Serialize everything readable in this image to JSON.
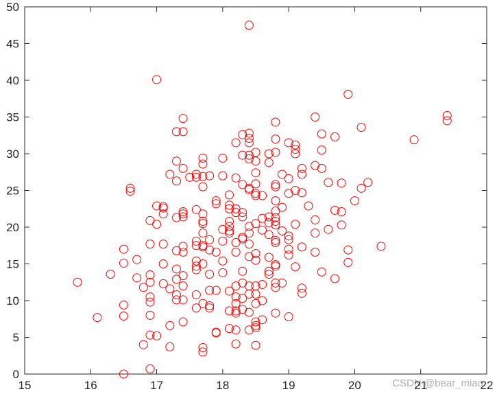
{
  "chart_data": {
    "type": "scatter",
    "color": "#ff0000",
    "marker": "circle-open",
    "box": true,
    "watermark": "CSDN @bear_miao",
    "xlim": [
      15,
      22
    ],
    "xticks": [
      15,
      16,
      17,
      18,
      19,
      20,
      21,
      22
    ],
    "ylim": [
      0,
      50
    ],
    "yticks": [
      0,
      5,
      10,
      15,
      20,
      25,
      30,
      35,
      40,
      45,
      50
    ],
    "x": [
      15.8,
      16.1,
      16.3,
      16.5,
      16.5,
      16.5,
      16.5,
      16.5,
      16.6,
      16.6,
      16.7,
      16.7,
      16.8,
      16.8,
      16.9,
      16.9,
      16.9,
      16.9,
      16.9,
      16.9,
      16.9,
      16.9,
      16.9,
      17,
      17,
      17,
      17,
      17.1,
      17.1,
      17.1,
      17.1,
      17.1,
      17.1,
      17.2,
      17.2,
      17.2,
      17.2,
      17.3,
      17.3,
      17.3,
      17.3,
      17.3,
      17.3,
      17.3,
      17.3,
      17.3,
      17.4,
      17.4,
      17.4,
      17.4,
      17.4,
      17.4,
      17.4,
      17.4,
      17.4,
      17.4,
      17.4,
      17.4,
      17.5,
      17.6,
      17.6,
      17.6,
      17.6,
      17.6,
      17.6,
      17.6,
      17.6,
      17.6,
      17.6,
      17.7,
      17.7,
      17.7,
      17.7,
      17.7,
      17.7,
      17.7,
      17.7,
      17.7,
      17.7,
      17.7,
      17.7,
      17.7,
      17.7,
      17.8,
      17.8,
      17.8,
      17.8,
      17.8,
      17.8,
      17.8,
      17.9,
      17.9,
      17.9,
      17.9,
      17.9,
      17.9,
      18,
      18,
      18,
      18,
      18,
      18,
      18.1,
      18.1,
      18.1,
      18.1,
      18.1,
      18.1,
      18.1,
      18.1,
      18.1,
      18.1,
      18.2,
      18.2,
      18.2,
      18.2,
      18.2,
      18.2,
      18.2,
      18.2,
      18.2,
      18.2,
      18.2,
      18.2,
      18.2,
      18.3,
      18.3,
      18.3,
      18.3,
      18.3,
      18.3,
      18.3,
      18.3,
      18.3,
      18.3,
      18.3,
      18.4,
      18.4,
      18.4,
      18.4,
      18.4,
      18.4,
      18.4,
      18.4,
      18.4,
      18.4,
      18.4,
      18.4,
      18.4,
      18.4,
      18.4,
      18.4,
      18.5,
      18.5,
      18.5,
      18.5,
      18.5,
      18.5,
      18.5,
      18.5,
      18.5,
      18.5,
      18.5,
      18.5,
      18.5,
      18.5,
      18.5,
      18.5,
      18.6,
      18.6,
      18.6,
      18.6,
      18.6,
      18.6,
      18.7,
      18.7,
      18.7,
      18.7,
      18.7,
      18.7,
      18.7,
      18.7,
      18.8,
      18.8,
      18.8,
      18.8,
      18.8,
      18.8,
      18.8,
      18.8,
      18.8,
      18.8,
      18.8,
      18.8,
      18.8,
      18.8,
      18.8,
      18.8,
      18.8,
      18.9,
      18.9,
      18.9,
      18.9,
      19,
      19,
      19,
      19,
      19,
      19,
      19,
      19,
      19.1,
      19.1,
      19.1,
      19.1,
      19.1,
      19.1,
      19.2,
      19.2,
      19.2,
      19.2,
      19.2,
      19.2,
      19.3,
      19.4,
      19.4,
      19.4,
      19.4,
      19.4,
      19.5,
      19.5,
      19.5,
      19.5,
      19.6,
      19.6,
      19.7,
      19.7,
      19.7,
      19.8,
      19.8,
      19.8,
      19.9,
      19.9,
      19.9,
      20,
      20.1,
      20.1,
      20.2,
      20.4,
      20.9,
      21.4,
      21.4
    ],
    "values": [
      12.5,
      7.7,
      13.6,
      17,
      15.1,
      9.4,
      7.9,
      0,
      25.3,
      24.9,
      15.6,
      13.1,
      11.8,
      4,
      20.9,
      17.7,
      13.5,
      12.5,
      10.5,
      9.8,
      8,
      5.3,
      0.7,
      40.1,
      22.9,
      20.4,
      5.2,
      22.8,
      22.6,
      21.8,
      17.7,
      15,
      12.3,
      27.2,
      11.6,
      6.6,
      3.7,
      33,
      29,
      26.3,
      21.3,
      16.8,
      14.3,
      12.9,
      10.8,
      10.1,
      34.8,
      33,
      28,
      22.1,
      21.8,
      21.4,
      17.4,
      16.6,
      13.4,
      12,
      10.1,
      7.1,
      26.8,
      27.2,
      26.8,
      22.4,
      18.1,
      17.5,
      15.4,
      14.7,
      14.2,
      10.8,
      9,
      29.4,
      28.6,
      26.9,
      25.5,
      21.8,
      20.8,
      20.5,
      19.2,
      17.5,
      17.3,
      15,
      9.6,
      3.6,
      3,
      27,
      18.3,
      16.9,
      13.6,
      11.4,
      9.3,
      9,
      23.6,
      23.2,
      16.6,
      11.4,
      5.7,
      5.6,
      29.4,
      27,
      19.7,
      18.1,
      15.4,
      13.8,
      24.4,
      23,
      22.5,
      20.8,
      20.1,
      19.5,
      19.2,
      11.3,
      8.6,
      6.2,
      31.5,
      26.7,
      22.5,
      22,
      17.9,
      16.6,
      12,
      10.5,
      9.6,
      8.6,
      8.3,
      6,
      4.1,
      32.6,
      29.8,
      25.8,
      22,
      21.4,
      18.6,
      18.4,
      14,
      12.4,
      10.3,
      8.8,
      47.5,
      32.8,
      32.1,
      31.5,
      29.8,
      29.3,
      25.3,
      25.1,
      20.1,
      19.2,
      17.7,
      16,
      12,
      10.9,
      8.4,
      6,
      30.2,
      29,
      27.4,
      25.9,
      24.6,
      24.3,
      20.5,
      16.4,
      15.5,
      12,
      10.9,
      9.6,
      7.1,
      6.6,
      6.3,
      3.9,
      24.3,
      21.2,
      19.6,
      12.2,
      10,
      7.4,
      30,
      28.8,
      21.4,
      20.6,
      19,
      15.9,
      14,
      13.6,
      34.3,
      32,
      30.2,
      25.8,
      25.5,
      23.6,
      22.2,
      21.3,
      20.8,
      20.3,
      18.2,
      17.9,
      14.9,
      14.7,
      12.4,
      11.8,
      8.3,
      27.2,
      22.7,
      19.5,
      12.4,
      31.5,
      26.6,
      24.6,
      18.8,
      18.3,
      17,
      16.2,
      7.8,
      31.2,
      30.6,
      30,
      25,
      20.4,
      14.6,
      28,
      27.2,
      24.7,
      17.3,
      11.7,
      11,
      22.9,
      35,
      28.4,
      21,
      19.2,
      16.6,
      32.7,
      30.5,
      28,
      13.9,
      26.1,
      19.7,
      32.3,
      22.3,
      13,
      26,
      22.1,
      20.3,
      38.1,
      16.9,
      15.2,
      23.6,
      33.6,
      25.3,
      26.1,
      17.4,
      31.9,
      35.2,
      34.5
    ]
  }
}
